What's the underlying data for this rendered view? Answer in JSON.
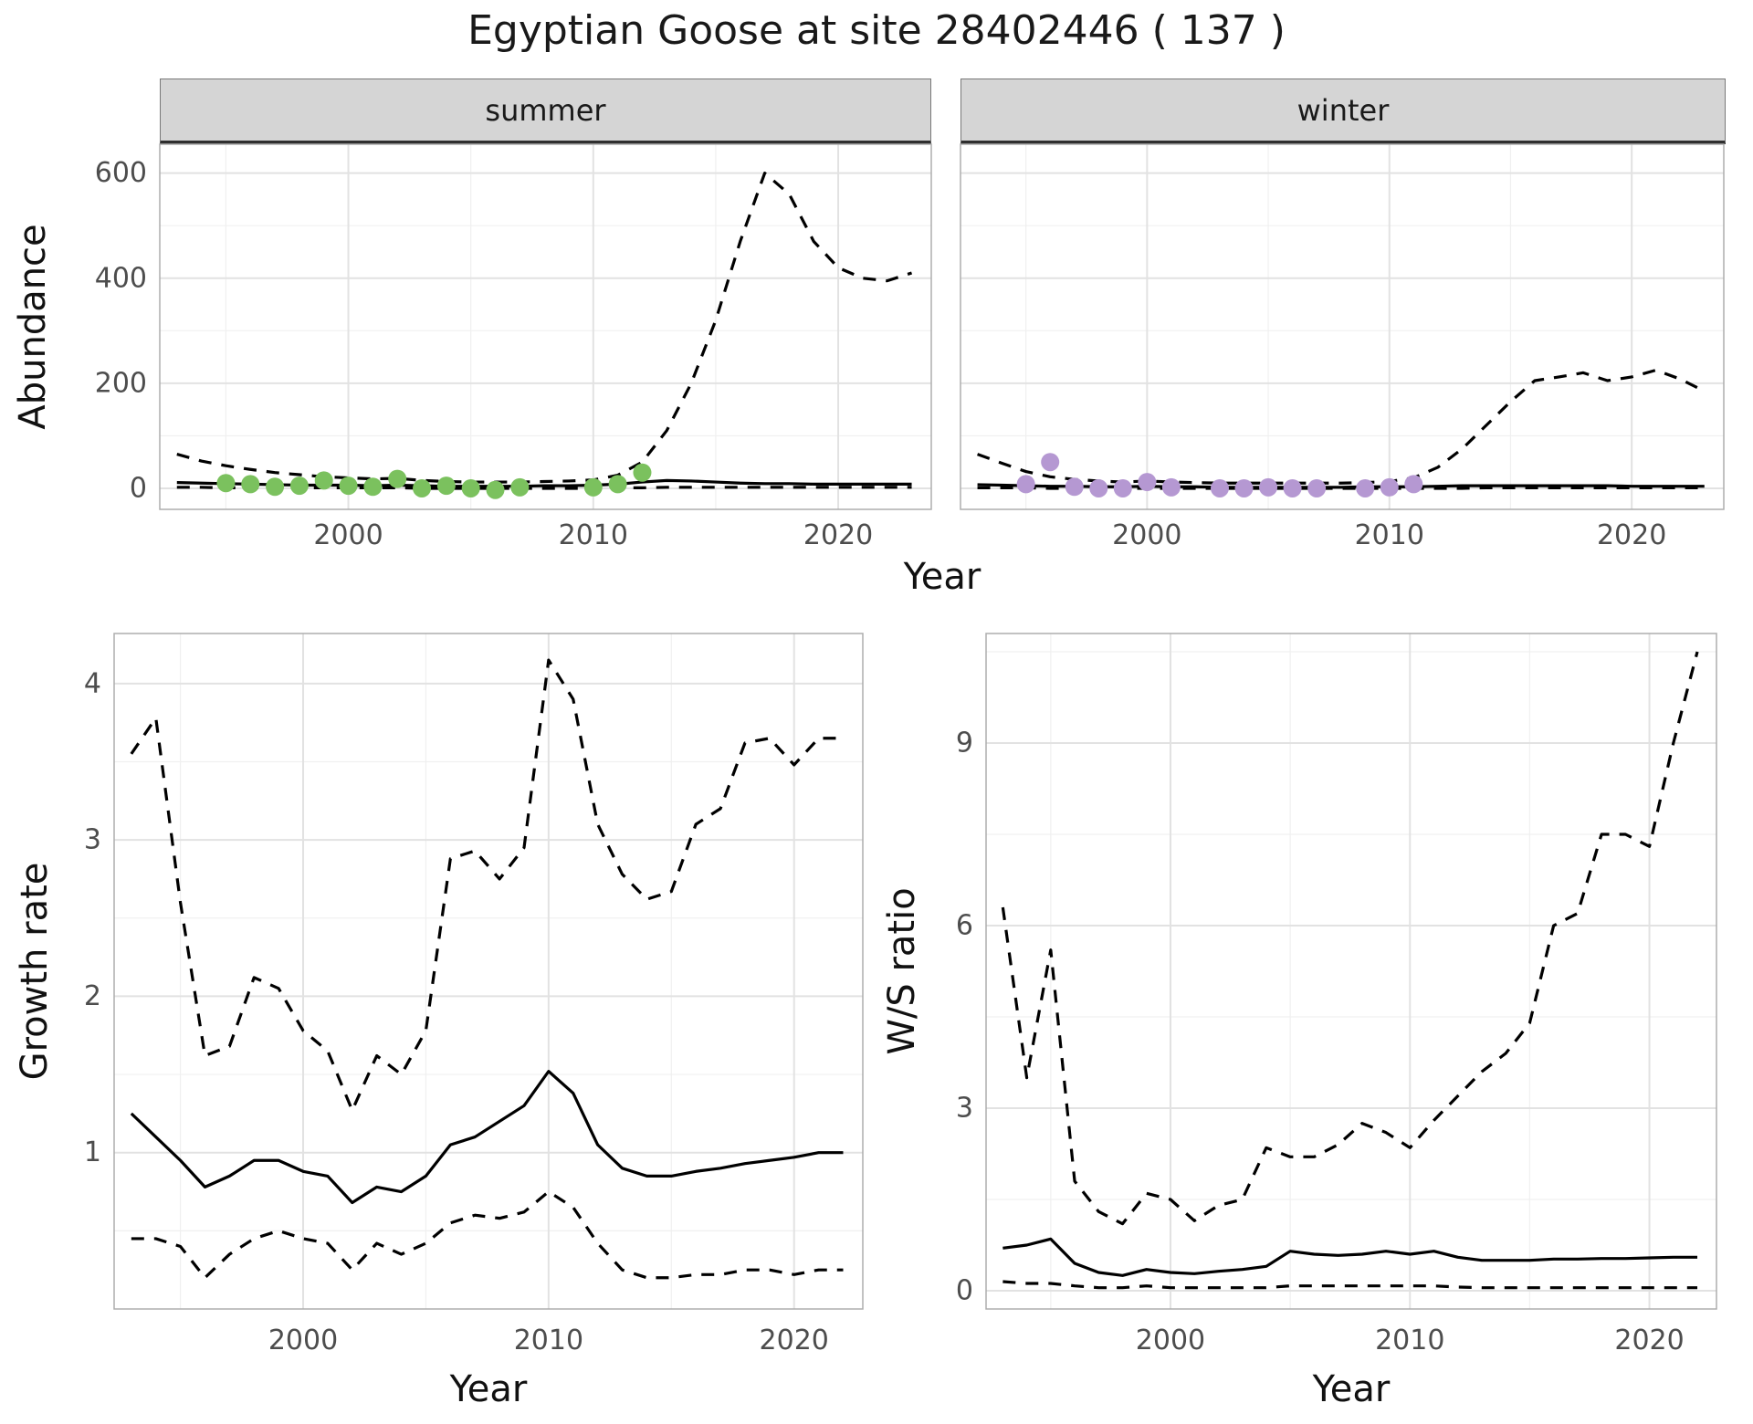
{
  "title": "Egyptian Goose at site 28402446 ( 137 )",
  "facets": [
    "summer",
    "winter"
  ],
  "axes": {
    "x": "Year",
    "abundance": "Abundance",
    "growth": "Growth rate",
    "ws": "W/S ratio"
  },
  "colors": {
    "line": "#000000",
    "summer_point": "#7bc15e",
    "winter_point": "#b598d2",
    "strip_bg": "#d5d5d5",
    "grid_major": "#e2e2e2",
    "grid_minor": "#f0f0f0",
    "panel_border": "#adadad",
    "tick_text": "#4d4d4d"
  },
  "chart_data": [
    {
      "id": "abundance-summer",
      "type": "line",
      "facet": "summer",
      "title": "",
      "xlabel": "Year",
      "ylabel": "Abundance",
      "xlim": [
        1992.3,
        2023.8
      ],
      "ylim": [
        -40,
        655
      ],
      "xticks": [
        2000,
        2010,
        2020
      ],
      "yticks": [
        0,
        200,
        400,
        600
      ],
      "x": [
        1993,
        1994,
        1995,
        1996,
        1997,
        1998,
        1999,
        2000,
        2001,
        2002,
        2003,
        2004,
        2005,
        2006,
        2007,
        2008,
        2009,
        2010,
        2011,
        2012,
        2013,
        2014,
        2015,
        2016,
        2017,
        2018,
        2019,
        2020,
        2021,
        2022,
        2023
      ],
      "series": [
        {
          "name": "upper-ci",
          "style": "dashed",
          "values": [
            65,
            52,
            43,
            36,
            30,
            26,
            22,
            20,
            18,
            19,
            15,
            13,
            12,
            12,
            12,
            13,
            14,
            16,
            25,
            50,
            110,
            200,
            320,
            470,
            600,
            560,
            470,
            420,
            400,
            395,
            410
          ]
        },
        {
          "name": "estimate",
          "style": "solid",
          "values": [
            11,
            10,
            9,
            8,
            7,
            6,
            6,
            6,
            5,
            6,
            5,
            4,
            4,
            4,
            4,
            5,
            5,
            6,
            8,
            12,
            15,
            14,
            12,
            10,
            9,
            9,
            8,
            8,
            8,
            8,
            8
          ]
        },
        {
          "name": "lower-ci",
          "style": "dashed",
          "values": [
            2,
            2,
            1,
            1,
            1,
            1,
            1,
            1,
            1,
            1,
            0,
            0,
            0,
            0,
            0,
            0,
            0,
            0,
            1,
            1,
            2,
            2,
            2,
            2,
            2,
            2,
            2,
            2,
            2,
            2,
            2
          ]
        }
      ],
      "points": {
        "name": "summer-observations",
        "color": "#7bc15e",
        "x": [
          1995,
          1996,
          1997,
          1998,
          1999,
          2000,
          2001,
          2002,
          2003,
          2004,
          2005,
          2006,
          2007,
          2010,
          2011,
          2012
        ],
        "y": [
          10,
          8,
          3,
          5,
          15,
          5,
          3,
          18,
          0,
          5,
          0,
          -3,
          2,
          2,
          8,
          30
        ]
      }
    },
    {
      "id": "abundance-winter",
      "type": "line",
      "facet": "winter",
      "title": "",
      "xlabel": "Year",
      "ylabel": "Abundance",
      "xlim": [
        1992.3,
        2023.8
      ],
      "ylim": [
        -40,
        655
      ],
      "xticks": [
        2000,
        2010,
        2020
      ],
      "yticks": [
        0,
        200,
        400,
        600
      ],
      "x": [
        1993,
        1994,
        1995,
        1996,
        1997,
        1998,
        1999,
        2000,
        2001,
        2002,
        2003,
        2004,
        2005,
        2006,
        2007,
        2008,
        2009,
        2010,
        2011,
        2012,
        2013,
        2014,
        2015,
        2016,
        2017,
        2018,
        2019,
        2020,
        2021,
        2022,
        2023
      ],
      "series": [
        {
          "name": "upper-ci",
          "style": "dashed",
          "values": [
            65,
            48,
            32,
            22,
            17,
            14,
            12,
            14,
            12,
            11,
            10,
            10,
            10,
            10,
            10,
            10,
            11,
            13,
            20,
            40,
            75,
            120,
            165,
            205,
            212,
            220,
            205,
            212,
            225,
            208,
            185
          ]
        },
        {
          "name": "estimate",
          "style": "solid",
          "values": [
            7,
            6,
            5,
            4,
            4,
            3,
            3,
            4,
            3,
            3,
            2,
            2,
            2,
            2,
            2,
            2,
            3,
            3,
            3,
            4,
            5,
            5,
            5,
            5,
            5,
            5,
            5,
            4,
            4,
            4,
            4
          ]
        },
        {
          "name": "lower-ci",
          "style": "dashed",
          "values": [
            1,
            1,
            1,
            0,
            0,
            0,
            0,
            0,
            0,
            0,
            0,
            0,
            0,
            0,
            0,
            0,
            0,
            0,
            0,
            0,
            0,
            1,
            1,
            1,
            1,
            1,
            1,
            1,
            1,
            1,
            1
          ]
        }
      ],
      "points": {
        "name": "winter-observations",
        "color": "#b598d2",
        "x": [
          1995,
          1996,
          1997,
          1998,
          1999,
          2000,
          2001,
          2003,
          2004,
          2005,
          2006,
          2007,
          2009,
          2010,
          2011
        ],
        "y": [
          8,
          50,
          3,
          0,
          0,
          12,
          2,
          0,
          0,
          2,
          0,
          0,
          0,
          2,
          8
        ]
      }
    },
    {
      "id": "growth-rate",
      "type": "line",
      "title": "",
      "xlabel": "Year",
      "ylabel": "Growth rate",
      "xlim": [
        1992.3,
        2022.8
      ],
      "ylim": [
        0,
        4.32
      ],
      "xticks": [
        2000,
        2010,
        2020
      ],
      "yticks": [
        1,
        2,
        3,
        4
      ],
      "x": [
        1993,
        1994,
        1995,
        1996,
        1997,
        1998,
        1999,
        2000,
        2001,
        2002,
        2003,
        2004,
        2005,
        2006,
        2007,
        2008,
        2009,
        2010,
        2011,
        2012,
        2013,
        2014,
        2015,
        2016,
        2017,
        2018,
        2019,
        2020,
        2021,
        2022
      ],
      "series": [
        {
          "name": "upper-ci",
          "style": "dashed",
          "values": [
            3.55,
            3.78,
            2.6,
            1.62,
            1.68,
            2.12,
            2.05,
            1.78,
            1.65,
            1.27,
            1.62,
            1.5,
            1.78,
            2.88,
            2.93,
            2.75,
            2.95,
            4.15,
            3.9,
            3.1,
            2.78,
            2.62,
            2.67,
            3.1,
            3.2,
            3.62,
            3.65,
            3.48,
            3.65,
            3.65
          ]
        },
        {
          "name": "estimate",
          "style": "solid",
          "values": [
            1.25,
            1.1,
            0.95,
            0.78,
            0.85,
            0.95,
            0.95,
            0.88,
            0.85,
            0.68,
            0.78,
            0.75,
            0.85,
            1.05,
            1.1,
            1.2,
            1.3,
            1.52,
            1.38,
            1.05,
            0.9,
            0.85,
            0.85,
            0.88,
            0.9,
            0.93,
            0.95,
            0.97,
            1.0,
            1.0
          ]
        },
        {
          "name": "lower-ci",
          "style": "dashed",
          "values": [
            0.45,
            0.45,
            0.4,
            0.2,
            0.35,
            0.45,
            0.5,
            0.45,
            0.42,
            0.25,
            0.42,
            0.35,
            0.42,
            0.55,
            0.6,
            0.58,
            0.62,
            0.75,
            0.65,
            0.42,
            0.25,
            0.2,
            0.2,
            0.22,
            0.22,
            0.25,
            0.25,
            0.22,
            0.25,
            0.25
          ]
        }
      ]
    },
    {
      "id": "ws-ratio",
      "type": "line",
      "title": "",
      "xlabel": "Year",
      "ylabel": "W/S ratio",
      "xlim": [
        1992.3,
        2022.8
      ],
      "ylim": [
        -0.3,
        10.8
      ],
      "xticks": [
        2000,
        2010,
        2020
      ],
      "yticks": [
        0,
        3,
        6,
        9
      ],
      "x": [
        1993,
        1994,
        1995,
        1996,
        1997,
        1998,
        1999,
        2000,
        2001,
        2002,
        2003,
        2004,
        2005,
        2006,
        2007,
        2008,
        2009,
        2010,
        2011,
        2012,
        2013,
        2014,
        2015,
        2016,
        2017,
        2018,
        2019,
        2020,
        2021,
        2022
      ],
      "series": [
        {
          "name": "upper-ci",
          "style": "dashed",
          "values": [
            6.3,
            3.5,
            5.6,
            1.8,
            1.3,
            1.1,
            1.6,
            1.5,
            1.15,
            1.4,
            1.5,
            2.35,
            2.2,
            2.2,
            2.4,
            2.75,
            2.6,
            2.35,
            2.8,
            3.2,
            3.6,
            3.9,
            4.4,
            6.0,
            6.2,
            7.5,
            7.5,
            7.3,
            9.0,
            10.5
          ]
        },
        {
          "name": "estimate",
          "style": "solid",
          "values": [
            0.7,
            0.75,
            0.85,
            0.45,
            0.3,
            0.25,
            0.35,
            0.3,
            0.28,
            0.32,
            0.35,
            0.4,
            0.65,
            0.6,
            0.58,
            0.6,
            0.65,
            0.6,
            0.65,
            0.55,
            0.5,
            0.5,
            0.5,
            0.52,
            0.52,
            0.53,
            0.53,
            0.54,
            0.55,
            0.55
          ]
        },
        {
          "name": "lower-ci",
          "style": "dashed",
          "values": [
            0.15,
            0.12,
            0.12,
            0.08,
            0.05,
            0.05,
            0.08,
            0.05,
            0.05,
            0.05,
            0.05,
            0.05,
            0.08,
            0.08,
            0.08,
            0.08,
            0.08,
            0.08,
            0.08,
            0.06,
            0.05,
            0.05,
            0.05,
            0.05,
            0.05,
            0.05,
            0.05,
            0.05,
            0.05,
            0.05
          ]
        }
      ]
    }
  ]
}
